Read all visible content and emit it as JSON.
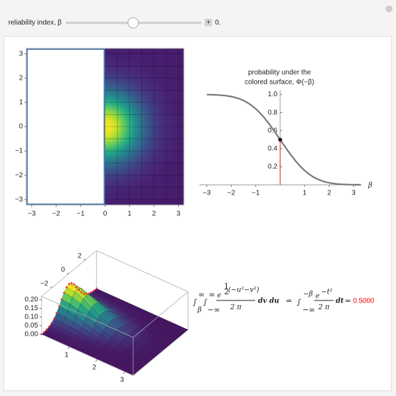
{
  "control": {
    "label": "reliability index, β",
    "value": {
      "value": 0,
      "label": "0."
    }
  },
  "density_plot": {
    "xlim": [
      -3.22,
      3.22
    ],
    "ylim": [
      -3.22,
      3.22
    ],
    "xticks": [
      {
        "value": -3,
        "label": "−3"
      },
      {
        "value": -2,
        "label": "−2"
      },
      {
        "value": -1,
        "label": "−1"
      },
      0,
      1,
      2,
      3
    ],
    "yticks": [
      {
        "value": -3,
        "label": "−3"
      },
      {
        "value": -2,
        "label": "−2"
      },
      {
        "value": -1,
        "label": "−1"
      },
      0,
      1,
      2,
      3
    ]
  },
  "cdf_plot": {
    "title": [
      "probability under the",
      "colored surface, Φ(−β)"
    ],
    "xlabel": "β",
    "xlim": [
      -3.3,
      3.3
    ],
    "ylim": [
      0,
      1.05
    ],
    "xticks": [
      {
        "value": -3,
        "label": "−3"
      },
      {
        "value": -2,
        "label": "−2"
      },
      {
        "value": -1,
        "label": "−1"
      },
      1,
      2,
      3
    ],
    "yticks": [
      0.2,
      0.4,
      0.6,
      0.8,
      {
        "value": 1,
        "label": "1.0"
      }
    ],
    "point": {
      "x": 0,
      "y": 0.5
    }
  },
  "surface_plot": {
    "xticks": [
      1,
      2,
      3
    ],
    "yticks": [
      {
        "value": -2,
        "label": "−2"
      },
      0,
      2
    ],
    "zticks": [
      {
        "value": 0,
        "label": "0.00"
      },
      {
        "value": 0.05,
        "label": "0.05"
      },
      {
        "value": 0.1,
        "label": "0.10"
      },
      {
        "value": 0.15,
        "label": "0.15"
      },
      {
        "value": 0.2,
        "label": "0.20"
      }
    ]
  },
  "formula": {
    "parts": [
      "∫",
      "β",
      "∞",
      "∫",
      "−∞",
      "∞",
      "e",
      "1",
      "2",
      "(−u²−v²)",
      "2 π",
      "dv du",
      "=",
      "∫",
      "−∞",
      "−β",
      "e",
      "−t²",
      "2 π",
      "dt",
      "="
    ],
    "result": "0.5000"
  }
}
